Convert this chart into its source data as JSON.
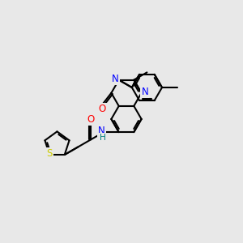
{
  "bg_color": "#e8e8e8",
  "bond_color": "#000000",
  "bond_width": 1.5,
  "atom_colors": {
    "N": "#0000ff",
    "O": "#ff0000",
    "S": "#cccc00",
    "H": "#008080",
    "C": "#000000"
  },
  "font_size": 8.5
}
